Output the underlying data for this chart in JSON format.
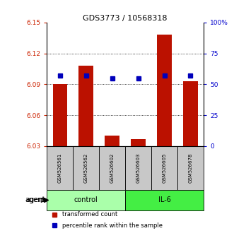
{
  "title": "GDS3773 / 10568318",
  "samples": [
    "GSM526561",
    "GSM526562",
    "GSM526602",
    "GSM526603",
    "GSM526605",
    "GSM526678"
  ],
  "group_defs": [
    {
      "label": "control",
      "start": 0,
      "end": 3,
      "color": "#aaffaa"
    },
    {
      "label": "IL-6",
      "start": 3,
      "end": 6,
      "color": "#44ee44"
    }
  ],
  "bar_values": [
    6.09,
    6.108,
    6.04,
    6.037,
    6.138,
    6.093
  ],
  "percentile_values": [
    57,
    57,
    55,
    55,
    57,
    57
  ],
  "ylim_left": [
    6.03,
    6.15
  ],
  "ylim_right": [
    0,
    100
  ],
  "yticks_left": [
    6.03,
    6.06,
    6.09,
    6.12,
    6.15
  ],
  "yticks_right": [
    0,
    25,
    50,
    75,
    100
  ],
  "ytick_labels_right": [
    "0",
    "25",
    "50",
    "75",
    "100%"
  ],
  "bar_color": "#BB1100",
  "dot_color": "#0000BB",
  "bar_width": 0.55,
  "bar_bottom": 6.03,
  "label_color_left": "#CC2200",
  "label_color_right": "#0000CC",
  "sample_box_color": "#C8C8C8",
  "legend_items": [
    "transformed count",
    "percentile rank within the sample"
  ]
}
